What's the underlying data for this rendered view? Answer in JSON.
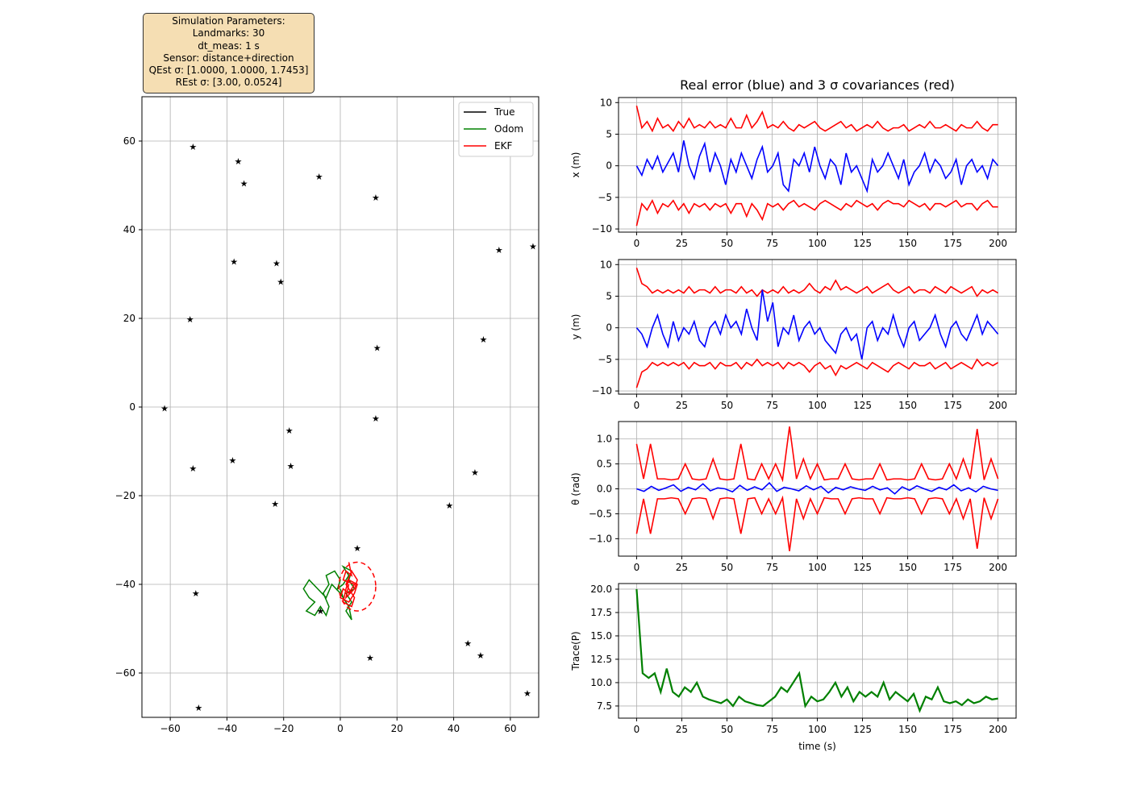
{
  "params_box": {
    "title": "Simulation Parameters:",
    "landmarks": "Landmarks: 30",
    "dt_meas": "dt_meas: 1 s",
    "sensor": "Sensor: distance+direction",
    "qest": "QEst σ: [1.0000, 1.0000, 1.7453]",
    "rest": "REst σ: [3.00, 0.0524]"
  },
  "colors": {
    "true": "#000000",
    "odom": "#008000",
    "ekf": "#ff0000",
    "error": "#0000ff",
    "cov": "#ff0000",
    "trace": "#008000"
  },
  "chart_data": [
    {
      "type": "scatter",
      "title": "",
      "xlabel": "",
      "ylabel": "",
      "xlim": [
        -70,
        70
      ],
      "ylim": [
        -70,
        70
      ],
      "grid": true,
      "xticks": [
        "−60",
        "−40",
        "−20",
        "0",
        "20",
        "40",
        "60"
      ],
      "yticks": [
        "−60",
        "−40",
        "−20",
        "0",
        "20",
        "40",
        "60"
      ],
      "legend": {
        "position": "top-right",
        "entries": [
          "True",
          "Odom",
          "EKF"
        ]
      },
      "landmarks": [
        [
          -52,
          58.7
        ],
        [
          -36,
          55.5
        ],
        [
          -34,
          50.5
        ],
        [
          -7.5,
          52
        ],
        [
          12.5,
          47.3
        ],
        [
          56,
          35.5
        ],
        [
          68,
          36.3
        ],
        [
          -37.5,
          32.8
        ],
        [
          -22.5,
          32.5
        ],
        [
          -21,
          28.3
        ],
        [
          -53,
          19.8
        ],
        [
          50.5,
          15.3
        ],
        [
          13,
          13.4
        ],
        [
          -62,
          -0.3
        ],
        [
          12.5,
          -2.5
        ],
        [
          -18,
          -5.3
        ],
        [
          -38,
          -12
        ],
        [
          -17.5,
          -13.3
        ],
        [
          -52,
          -13.8
        ],
        [
          47.5,
          -14.7
        ],
        [
          -23,
          -21.8
        ],
        [
          38.5,
          -22.2
        ],
        [
          6,
          -31.8
        ],
        [
          -51,
          -42
        ],
        [
          -7,
          -46
        ],
        [
          10.5,
          -56.5
        ],
        [
          45,
          -53.3
        ],
        [
          49.5,
          -56
        ],
        [
          66,
          -64.5
        ],
        [
          -50,
          -67.8
        ]
      ],
      "odom_track": [
        [
          2,
          -44
        ],
        [
          0,
          -42
        ],
        [
          -3,
          -40
        ],
        [
          -5,
          -43
        ],
        [
          -8,
          -41
        ],
        [
          -11,
          -39
        ],
        [
          -13,
          -41
        ],
        [
          -11,
          -43
        ],
        [
          -9,
          -44
        ],
        [
          -12,
          -46
        ],
        [
          -9,
          -47
        ],
        [
          -7,
          -45
        ],
        [
          -5,
          -47
        ],
        [
          -4,
          -45
        ],
        [
          -6,
          -42
        ],
        [
          -4,
          -40
        ],
        [
          -5,
          -38
        ],
        [
          -2,
          -37
        ],
        [
          0,
          -39
        ],
        [
          -1,
          -41
        ],
        [
          1,
          -40
        ],
        [
          3,
          -38
        ],
        [
          1,
          -36
        ],
        [
          4,
          -37
        ],
        [
          3,
          -39
        ],
        [
          5,
          -41
        ],
        [
          2,
          -42
        ],
        [
          4,
          -44
        ],
        [
          2,
          -46
        ],
        [
          4,
          -48
        ],
        [
          3,
          -45
        ],
        [
          1,
          -43
        ],
        [
          0,
          -41
        ]
      ],
      "ekf_track": [
        [
          3,
          -35
        ],
        [
          4,
          -38
        ],
        [
          2,
          -37
        ],
        [
          1,
          -39
        ],
        [
          5,
          -40
        ],
        [
          3,
          -42
        ],
        [
          1,
          -41
        ],
        [
          0,
          -43
        ],
        [
          3,
          -44
        ],
        [
          5,
          -42
        ],
        [
          6,
          -40
        ],
        [
          3,
          -39
        ],
        [
          2,
          -41
        ],
        [
          1,
          -44
        ],
        [
          4,
          -45
        ],
        [
          5,
          -43
        ],
        [
          2,
          -40
        ],
        [
          4,
          -37
        ],
        [
          6,
          -39
        ],
        [
          5,
          -41
        ],
        [
          2,
          -43
        ],
        [
          3,
          -40
        ]
      ],
      "covariance_ellipse": {
        "center": [
          6,
          -40.5
        ],
        "rx": 6.5,
        "ry": 5.5
      }
    },
    {
      "type": "line",
      "title": "Real error (blue) and 3 σ covariances (red)",
      "xlabel": "",
      "ylabel": "x (m)",
      "xlim": [
        -10,
        210
      ],
      "ylim": [
        -10.5,
        10.8
      ],
      "grid": true,
      "xticks": [
        "0",
        "25",
        "50",
        "75",
        "100",
        "125",
        "150",
        "175",
        "200"
      ],
      "yticks": [
        "−10",
        "−5",
        "0",
        "5",
        "10"
      ],
      "series": [
        {
          "values_error": [
            0,
            -1.5,
            1,
            -0.5,
            1.5,
            -1,
            0.5,
            2,
            -1,
            4,
            0,
            -2,
            1.5,
            3.5,
            -1,
            2,
            0,
            -3,
            1,
            -1,
            2,
            0,
            -2,
            1,
            3,
            -1,
            0,
            2,
            -3,
            -4,
            1,
            0,
            2,
            -1,
            3,
            0,
            -2,
            1,
            0,
            -3,
            2,
            -1,
            0,
            -2,
            -4,
            1,
            -1,
            0,
            2,
            0,
            -2,
            1,
            -3,
            -1,
            0,
            2,
            -1,
            1,
            0,
            -2,
            -1,
            1,
            -3,
            0,
            1,
            -1,
            0,
            -2,
            1,
            0
          ]
        },
        {
          "values_cov": [
            9.5,
            6,
            7,
            5.5,
            7.5,
            6,
            6.5,
            5.5,
            7,
            6,
            7.5,
            6,
            6.5,
            6,
            7,
            6,
            6.5,
            6,
            7.5,
            6,
            6,
            8,
            6,
            7,
            8.5,
            6,
            6.5,
            6,
            7,
            6,
            5.5,
            6.5,
            6,
            6.5,
            7,
            6,
            5.5,
            6,
            6.5,
            7,
            6,
            6.5,
            5.5,
            6,
            6.5,
            6,
            7,
            6,
            5.5,
            6,
            6,
            6.5,
            5.5,
            6,
            6.5,
            6,
            7,
            6,
            6,
            6.5,
            6,
            5.5,
            6.5,
            6,
            6,
            7,
            6,
            5.5,
            6.5,
            6.5
          ]
        }
      ]
    },
    {
      "type": "line",
      "title": "",
      "xlabel": "",
      "ylabel": "y (m)",
      "xlim": [
        -10,
        210
      ],
      "ylim": [
        -10.5,
        10.8
      ],
      "grid": true,
      "xticks": [
        "0",
        "25",
        "50",
        "75",
        "100",
        "125",
        "150",
        "175",
        "200"
      ],
      "yticks": [
        "−10",
        "−5",
        "0",
        "5",
        "10"
      ],
      "series": [
        {
          "values_error": [
            0,
            -1,
            -3,
            0,
            2,
            -1,
            -3,
            1,
            -2,
            0,
            -1,
            1,
            -2,
            -3,
            0,
            1,
            -1,
            2,
            0,
            1,
            -1,
            3,
            0,
            -2,
            6,
            1,
            4,
            -3,
            0,
            -1,
            2,
            -2,
            0,
            1,
            -1,
            0,
            -2,
            -3,
            -4,
            -1,
            0,
            -2,
            -1,
            -5,
            0,
            1,
            -2,
            0,
            -1,
            2,
            -1,
            -3,
            0,
            1,
            -2,
            -1,
            0,
            2,
            -1,
            -3,
            0,
            1,
            -1,
            -2,
            0,
            2,
            -1,
            1,
            0,
            -1
          ]
        },
        {
          "values_cov": [
            9.5,
            7,
            6.5,
            5.5,
            6,
            5.5,
            6,
            5.5,
            6,
            5.5,
            6.5,
            5.5,
            6,
            6,
            5.5,
            6.5,
            5.5,
            6,
            6,
            5.5,
            6.5,
            5.5,
            6,
            5,
            6,
            5.5,
            6,
            5.5,
            6.5,
            5.5,
            6,
            5.5,
            6,
            7,
            6,
            5.5,
            6.5,
            6,
            7.5,
            6,
            6.5,
            6,
            5.5,
            6,
            6.5,
            5.5,
            6,
            6.5,
            7,
            6,
            5.5,
            6,
            6.5,
            5.5,
            6,
            6,
            5.5,
            6.5,
            6,
            5.5,
            6.5,
            6,
            5.5,
            6,
            6.5,
            5,
            6,
            5.5,
            6,
            5.5
          ]
        }
      ]
    },
    {
      "type": "line",
      "title": "",
      "xlabel": "",
      "ylabel": "θ (rad)",
      "xlim": [
        -10,
        210
      ],
      "ylim": [
        -1.35,
        1.35
      ],
      "grid": true,
      "xticks": [
        "0",
        "25",
        "50",
        "75",
        "100",
        "125",
        "150",
        "175",
        "200"
      ],
      "yticks": [
        "−1.0",
        "−0.5",
        "0.0",
        "0.5",
        "1.0"
      ],
      "series": [
        {
          "values_error": [
            0,
            -0.05,
            0.05,
            -0.03,
            0.02,
            0.08,
            -0.05,
            0.03,
            -0.02,
            0.1,
            -0.04,
            0.02,
            0,
            -0.06,
            0.07,
            -0.03,
            0.04,
            -0.02,
            0.12,
            -0.05,
            0.03,
            0,
            -0.04,
            0.06,
            -0.02,
            0.05,
            -0.08,
            0.03,
            -0.02,
            0.04,
            0,
            -0.03,
            0.05,
            -0.02,
            0.02,
            -0.1,
            0.04,
            -0.03,
            0.06,
            0,
            -0.05,
            0.03,
            -0.02,
            0.08,
            -0.04,
            0.02,
            -0.06,
            0.05,
            0,
            -0.03
          ]
        },
        {
          "values_cov": [
            0.9,
            0.2,
            0.9,
            0.2,
            0.2,
            0.18,
            0.2,
            0.5,
            0.2,
            0.18,
            0.2,
            0.6,
            0.2,
            0.18,
            0.2,
            0.9,
            0.2,
            0.18,
            0.5,
            0.2,
            0.5,
            0.18,
            1.25,
            0.2,
            0.6,
            0.2,
            0.5,
            0.18,
            0.2,
            0.2,
            0.5,
            0.2,
            0.18,
            0.2,
            0.2,
            0.5,
            0.18,
            0.2,
            0.2,
            0.18,
            0.2,
            0.5,
            0.2,
            0.18,
            0.2,
            0.5,
            0.2,
            0.6,
            0.2,
            1.2,
            0.18,
            0.6,
            0.2
          ]
        }
      ]
    },
    {
      "type": "line",
      "title": "",
      "xlabel": "time (s)",
      "ylabel": "Trace(P)",
      "xlim": [
        -10,
        210
      ],
      "ylim": [
        6.2,
        20.6
      ],
      "grid": true,
      "xticks": [
        "0",
        "25",
        "50",
        "75",
        "100",
        "125",
        "150",
        "175",
        "200"
      ],
      "yticks": [
        "7.5",
        "10.0",
        "12.5",
        "15.0",
        "17.5",
        "20.0"
      ],
      "series": [
        {
          "values": [
            20,
            11,
            10.5,
            11,
            9,
            11.5,
            9,
            8.5,
            9.5,
            9,
            10,
            8.5,
            8.2,
            8,
            7.8,
            8.2,
            7.5,
            8.5,
            8,
            7.8,
            7.6,
            7.5,
            8,
            8.5,
            9.5,
            9,
            10,
            11,
            7.5,
            8.5,
            8,
            8.2,
            9,
            10,
            8.5,
            9.5,
            8,
            9,
            8.5,
            9,
            8.5,
            10,
            8.2,
            9,
            8.5,
            8,
            8.8,
            7,
            8.5,
            8.2,
            9.5,
            8,
            7.8,
            8,
            7.6,
            8.2,
            7.8,
            8,
            8.5,
            8.2,
            8.3
          ]
        }
      ]
    }
  ]
}
